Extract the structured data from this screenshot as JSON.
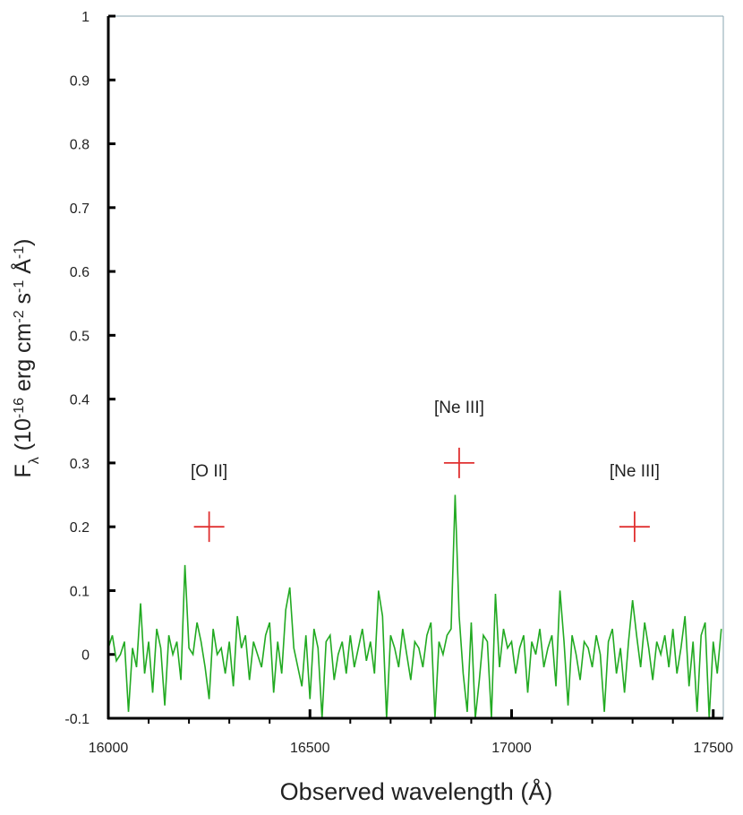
{
  "chart_data": {
    "type": "line",
    "x_label": "Observed wavelength (Å)",
    "y_label_parts": [
      {
        "text": "F"
      },
      {
        "text": "λ",
        "shift": "sub"
      },
      {
        "text": " (10"
      },
      {
        "text": "-16",
        "shift": "super"
      },
      {
        "text": " erg cm"
      },
      {
        "text": "-2",
        "shift": "super"
      },
      {
        "text": " s"
      },
      {
        "text": "-1",
        "shift": "super"
      },
      {
        "text": " Å"
      },
      {
        "text": "-1",
        "shift": "super"
      },
      {
        "text": ")"
      }
    ],
    "xlim": [
      16000,
      17525
    ],
    "ylim": [
      -0.1,
      1
    ],
    "xticks": [
      16000,
      16500,
      17000,
      17500
    ],
    "xminorticks": [
      16100,
      16200,
      16300,
      16400,
      16600,
      16700,
      16800,
      16900,
      17100,
      17200,
      17300,
      17400
    ],
    "yticks": [
      -0.1,
      0,
      0.1,
      0.2,
      0.3,
      0.4,
      0.5,
      0.6,
      0.7,
      0.8,
      0.9,
      1
    ],
    "x": [
      16000,
      16010,
      16020,
      16030,
      16040,
      16050,
      16060,
      16070,
      16080,
      16090,
      16100,
      16110,
      16120,
      16130,
      16140,
      16150,
      16160,
      16170,
      16180,
      16190,
      16200,
      16210,
      16220,
      16230,
      16240,
      16250,
      16260,
      16270,
      16280,
      16290,
      16300,
      16310,
      16320,
      16330,
      16340,
      16350,
      16360,
      16370,
      16380,
      16390,
      16400,
      16410,
      16420,
      16430,
      16440,
      16450,
      16460,
      16470,
      16480,
      16490,
      16500,
      16510,
      16520,
      16530,
      16540,
      16550,
      16560,
      16570,
      16580,
      16590,
      16600,
      16610,
      16620,
      16630,
      16640,
      16650,
      16660,
      16670,
      16680,
      16690,
      16700,
      16710,
      16720,
      16730,
      16740,
      16750,
      16760,
      16770,
      16780,
      16790,
      16800,
      16810,
      16820,
      16830,
      16840,
      16850,
      16860,
      16870,
      16880,
      16890,
      16900,
      16910,
      16920,
      16930,
      16940,
      16950,
      16960,
      16970,
      16980,
      16990,
      17000,
      17010,
      17020,
      17030,
      17040,
      17050,
      17060,
      17070,
      17080,
      17090,
      17100,
      17110,
      17120,
      17130,
      17140,
      17150,
      17160,
      17170,
      17180,
      17190,
      17200,
      17210,
      17220,
      17230,
      17240,
      17250,
      17260,
      17270,
      17280,
      17290,
      17300,
      17310,
      17320,
      17330,
      17340,
      17350,
      17360,
      17370,
      17380,
      17390,
      17400,
      17410,
      17420,
      17430,
      17440,
      17450,
      17460,
      17470,
      17480,
      17490,
      17500,
      17510,
      17520
    ],
    "series": [
      {
        "color": "#22aa22",
        "values": [
          0.01,
          0.03,
          -0.01,
          0.0,
          0.02,
          -0.09,
          0.01,
          -0.02,
          0.08,
          -0.03,
          0.02,
          -0.06,
          0.04,
          0.01,
          -0.08,
          0.03,
          0.0,
          0.02,
          -0.04,
          0.14,
          0.01,
          0.0,
          0.05,
          0.02,
          -0.02,
          -0.07,
          0.04,
          0.0,
          0.01,
          -0.03,
          0.02,
          -0.05,
          0.06,
          0.01,
          0.03,
          -0.04,
          0.02,
          0.0,
          -0.02,
          0.03,
          0.05,
          -0.06,
          0.02,
          -0.03,
          0.07,
          0.105,
          0.01,
          -0.02,
          -0.05,
          0.03,
          -0.07,
          0.04,
          0.01,
          -0.1,
          0.02,
          0.03,
          -0.04,
          0.0,
          0.02,
          -0.03,
          0.03,
          -0.02,
          0.01,
          0.04,
          -0.01,
          0.02,
          -0.03,
          0.1,
          0.06,
          -0.1,
          0.03,
          0.01,
          -0.02,
          0.04,
          0.0,
          -0.04,
          0.02,
          0.01,
          -0.02,
          0.03,
          0.05,
          -0.1,
          0.02,
          0.0,
          0.03,
          0.04,
          0.25,
          0.06,
          -0.03,
          -0.09,
          0.05,
          -0.1,
          -0.04,
          0.03,
          0.02,
          -0.1,
          0.095,
          -0.02,
          0.04,
          0.01,
          0.02,
          -0.03,
          0.01,
          0.03,
          -0.06,
          0.02,
          0.0,
          0.04,
          -0.02,
          0.01,
          0.03,
          -0.05,
          0.1,
          0.02,
          -0.08,
          0.03,
          0.0,
          -0.04,
          0.02,
          0.01,
          -0.02,
          0.03,
          0.0,
          -0.09,
          0.02,
          0.04,
          -0.03,
          0.01,
          -0.06,
          0.02,
          0.085,
          0.03,
          -0.02,
          0.05,
          0.01,
          -0.04,
          0.02,
          0.0,
          0.03,
          -0.02,
          0.04,
          -0.03,
          0.01,
          0.06,
          -0.05,
          0.02,
          -0.09,
          0.03,
          0.05,
          -0.1,
          0.02,
          -0.03,
          0.04
        ]
      }
    ],
    "markers": {
      "color": "#e03030",
      "x": [
        16250,
        16870,
        17305
      ],
      "values": [
        0.2,
        0.3,
        0.2
      ],
      "labels": [
        "[O II]",
        "[Ne III]",
        "[Ne III]"
      ]
    }
  }
}
